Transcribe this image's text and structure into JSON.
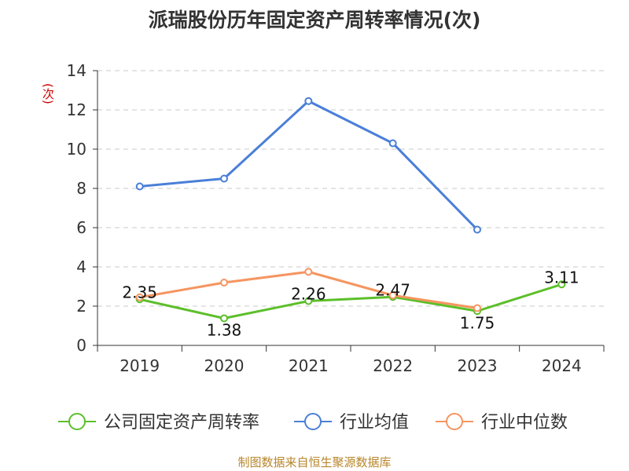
{
  "chart_data": {
    "type": "line",
    "title": "派瑞股份历年固定资产周转率情况(次)",
    "ylabel": "(次)",
    "ylim": [
      0,
      14
    ],
    "yticks": [
      0,
      2,
      4,
      6,
      8,
      10,
      12,
      14
    ],
    "categories": [
      "2019",
      "2020",
      "2021",
      "2022",
      "2023",
      "2024"
    ],
    "grid": true,
    "legend_position": "bottom",
    "series": [
      {
        "name": "公司固定资产周转率",
        "color": "#5cbf2a",
        "values": [
          2.35,
          1.38,
          2.26,
          2.47,
          1.75,
          3.11
        ],
        "labels": [
          "2.35",
          "1.38",
          "2.26",
          "2.47",
          "1.75",
          "3.11"
        ]
      },
      {
        "name": "行业均值",
        "color": "#4a7fd8",
        "values": [
          8.1,
          8.5,
          12.45,
          10.3,
          5.9,
          null
        ]
      },
      {
        "name": "行业中位数",
        "color": "#f59560",
        "values": [
          2.45,
          3.2,
          3.75,
          2.55,
          1.9,
          null
        ]
      }
    ]
  },
  "source": "制图数据来自恒生聚源数据库"
}
